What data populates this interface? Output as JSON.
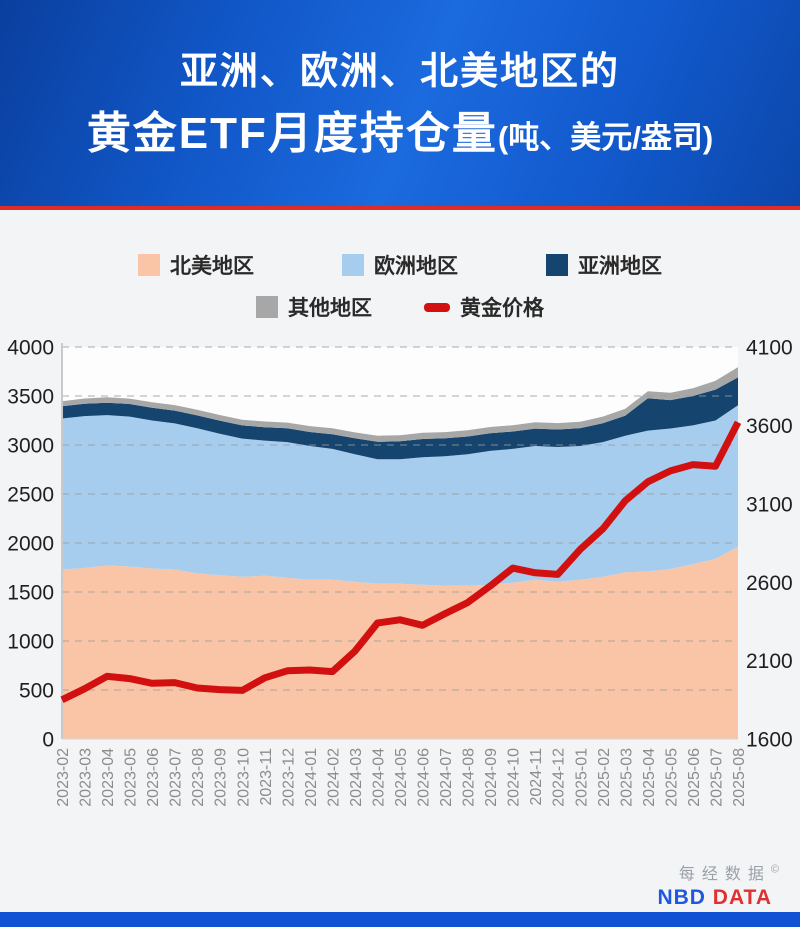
{
  "header": {
    "title_line1": "亚洲、欧洲、北美地区的",
    "title_line2_main": "黄金ETF月度持仓量",
    "title_line2_sub": "(吨、美元/盎司)"
  },
  "legend": {
    "rows": [
      [
        {
          "label": "北美地区",
          "color": "#f9c5a6",
          "mark": "square"
        },
        {
          "label": "欧洲地区",
          "color": "#a6cdee",
          "mark": "square"
        },
        {
          "label": "亚洲地区",
          "color": "#15456e",
          "mark": "square"
        }
      ],
      [
        {
          "label": "其他地区",
          "color": "#a7a7a7",
          "mark": "square"
        },
        {
          "label": "黄金价格",
          "color": "#d21010",
          "mark": "dash"
        }
      ]
    ]
  },
  "chart_data": {
    "type": "area",
    "subtype": "stacked-area-with-line",
    "x": [
      "2023-02",
      "2023-03",
      "2023-04",
      "2023-05",
      "2023-06",
      "2023-07",
      "2023-08",
      "2023-09",
      "2023-10",
      "2023-11",
      "2023-12",
      "2024-01",
      "2024-02",
      "2024-03",
      "2024-04",
      "2024-05",
      "2024-06",
      "2024-07",
      "2024-08",
      "2024-09",
      "2024-10",
      "2024-11",
      "2024-12",
      "2025-01",
      "2025-02",
      "2025-03",
      "2025-04",
      "2025-05",
      "2025-06",
      "2025-07",
      "2025-08"
    ],
    "series": [
      {
        "name": "北美地区",
        "type": "area",
        "axis": "left",
        "color": "#f9c5a6",
        "values": [
          1730,
          1745,
          1770,
          1760,
          1740,
          1730,
          1690,
          1670,
          1655,
          1665,
          1645,
          1625,
          1625,
          1605,
          1585,
          1585,
          1575,
          1565,
          1565,
          1575,
          1595,
          1625,
          1605,
          1625,
          1655,
          1700,
          1710,
          1735,
          1785,
          1840,
          1960
        ]
      },
      {
        "name": "欧洲地区",
        "type": "area",
        "axis": "left",
        "color": "#a6cdee",
        "values": [
          1540,
          1550,
          1535,
          1530,
          1510,
          1490,
          1480,
          1445,
          1410,
          1380,
          1385,
          1365,
          1335,
          1300,
          1270,
          1270,
          1300,
          1320,
          1340,
          1365,
          1365,
          1365,
          1375,
          1365,
          1375,
          1395,
          1437,
          1433,
          1415,
          1410,
          1445
        ]
      },
      {
        "name": "亚洲地区",
        "type": "area",
        "axis": "left",
        "color": "#15456e",
        "values": [
          125,
          126,
          127,
          128,
          130,
          131,
          132,
          134,
          135,
          137,
          140,
          143,
          150,
          163,
          178,
          183,
          186,
          184,
          182,
          180,
          178,
          177,
          178,
          182,
          192,
          205,
          330,
          290,
          300,
          315,
          285
        ]
      },
      {
        "name": "其他地区",
        "type": "area",
        "axis": "left",
        "color": "#a7a7a7",
        "values": [
          52,
          53,
          55,
          55,
          56,
          56,
          57,
          57,
          58,
          58,
          59,
          60,
          60,
          61,
          62,
          62,
          63,
          63,
          63,
          64,
          64,
          65,
          65,
          66,
          68,
          70,
          72,
          75,
          80,
          90,
          105
        ]
      },
      {
        "name": "黄金价格",
        "type": "line",
        "axis": "right",
        "color": "#d21010",
        "width": 7,
        "values": [
          1850,
          1920,
          2000,
          1985,
          1955,
          1960,
          1925,
          1915,
          1910,
          1990,
          2035,
          2040,
          2030,
          2160,
          2340,
          2360,
          2325,
          2400,
          2470,
          2575,
          2690,
          2660,
          2650,
          2810,
          2940,
          3120,
          3240,
          3310,
          3350,
          3340,
          3620
        ]
      }
    ],
    "left_axis": {
      "min": 0,
      "max": 4000,
      "step": 500,
      "ticks": [
        "0",
        "500",
        "1000",
        "1500",
        "2000",
        "2500",
        "3000",
        "3500",
        "4000"
      ]
    },
    "right_axis": {
      "min": 1600,
      "max": 4100,
      "step": 500,
      "ticks": [
        "1600",
        "2100",
        "2600",
        "3100",
        "3600",
        "4100"
      ]
    },
    "grid": true,
    "gridline_style": "dashed",
    "legend_position": "top",
    "title": "亚洲、欧洲、北美地区的黄金ETF月度持仓量(吨、美元/盎司)"
  },
  "footer": {
    "brand_cn": "每经数据",
    "copyright": "©",
    "brand_en_1": "NBD",
    "brand_en_2": "DATA"
  },
  "colors": {
    "header_gradient_start": "#0a3f9e",
    "header_gradient_mid": "#1b6ade",
    "divider_red": "#e02b2b",
    "page_bg": "#f3f4f6",
    "plot_bg": "#fdfdfe",
    "tick_label": "#1f1f1f",
    "x_label": "#8c8c8c",
    "gridline": "#9a9a9a",
    "bottom_bar": "#1152d4"
  }
}
